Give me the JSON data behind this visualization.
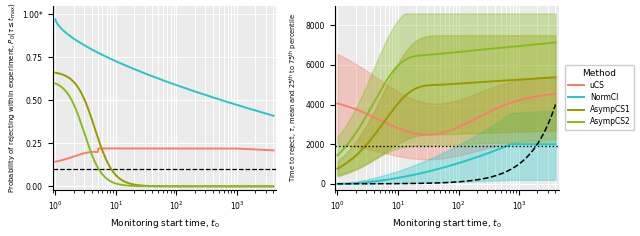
{
  "colors": {
    "uCS": "#F4806A",
    "NormCI": "#26C6C6",
    "AsympCS1": "#999900",
    "AsympCS2": "#88BB22"
  },
  "left": {
    "xlim": [
      0.9,
      4500
    ],
    "ylim": [
      -0.02,
      1.05
    ],
    "dashed_hline": 0.1,
    "yticks": [
      0.0,
      0.25,
      0.5,
      0.75,
      "1.00*"
    ],
    "xlabel": "Monitoring start time, $t_0$",
    "ylabel": "Probability of rejecting within experiment, $P_0(\\tau \\leq t_{\\rm max})$"
  },
  "right": {
    "xlim": [
      0.9,
      4500
    ],
    "ylim": [
      -300,
      9000
    ],
    "dotted_hline": 1900,
    "yticks": [
      0,
      2000,
      4000,
      6000,
      8000
    ],
    "xlabel": "Monitoring start time, $t_0$",
    "ylabel": "Time to reject, $\\tau$, mean and 25$^{\\rm th}$ to 75$^{\\rm th}$ percentile"
  },
  "legend_title": "Method",
  "legend_labels": [
    "uCS",
    "NormCI",
    "AsympCS1",
    "AsympCS2"
  ],
  "bg_color": "#EBEBEB",
  "alpha_fill": 0.35
}
